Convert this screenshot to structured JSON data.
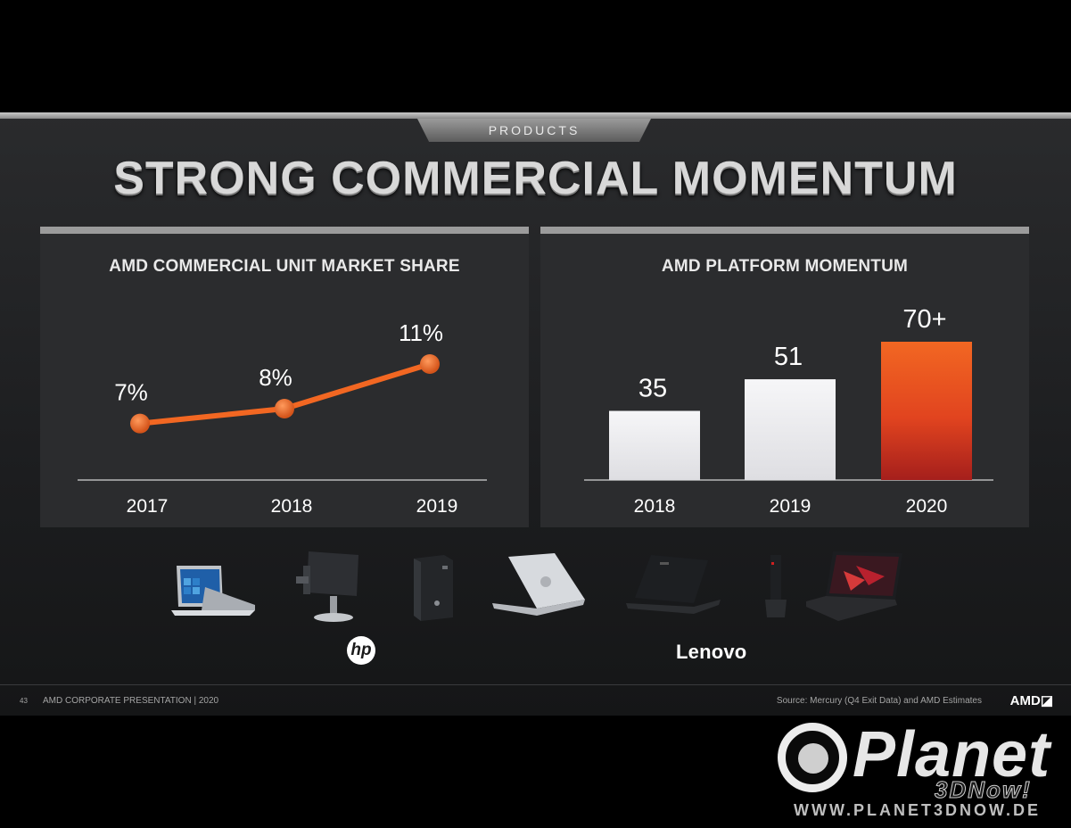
{
  "tab_label": "PRODUCTS",
  "title": "STRONG COMMERCIAL MOMENTUM",
  "chart_data": [
    {
      "type": "line",
      "title": "AMD COMMERCIAL UNIT MARKET SHARE",
      "categories": [
        "2017",
        "2018",
        "2019"
      ],
      "values": [
        7,
        8,
        11
      ],
      "labels": [
        "7%",
        "8%",
        "11%"
      ],
      "color": "#f26722",
      "grid": false
    },
    {
      "type": "bar",
      "title": "AMD PLATFORM MOMENTUM",
      "categories": [
        "2018",
        "2019",
        "2020"
      ],
      "values": [
        35,
        51,
        70
      ],
      "labels": [
        "35",
        "51",
        "70+"
      ],
      "colors": [
        "#f2f2f4",
        "#f2f2f4",
        "#f26722"
      ],
      "grid": false
    }
  ],
  "products": [
    "laptop-convertible-icon",
    "all-in-one-desktop-icon",
    "tower-desktop-icon",
    "laptop-silver-icon",
    "laptop-black-icon",
    "tiny-desktop-icon",
    "thinkpad-laptop-icon"
  ],
  "brands": {
    "hp": "hp",
    "lenovo": "Lenovo"
  },
  "footer": {
    "page_number": "43",
    "presentation": "AMD CORPORATE  PRESENTATION   |   2020",
    "source": "Source: Mercury (Q4 Exit Data) and AMD Estimates",
    "logo": "AMD◪"
  },
  "watermark": {
    "title": "Planet",
    "subtitle": "3DNow!",
    "url": "WWW.PLANET3DNOW.DE"
  }
}
